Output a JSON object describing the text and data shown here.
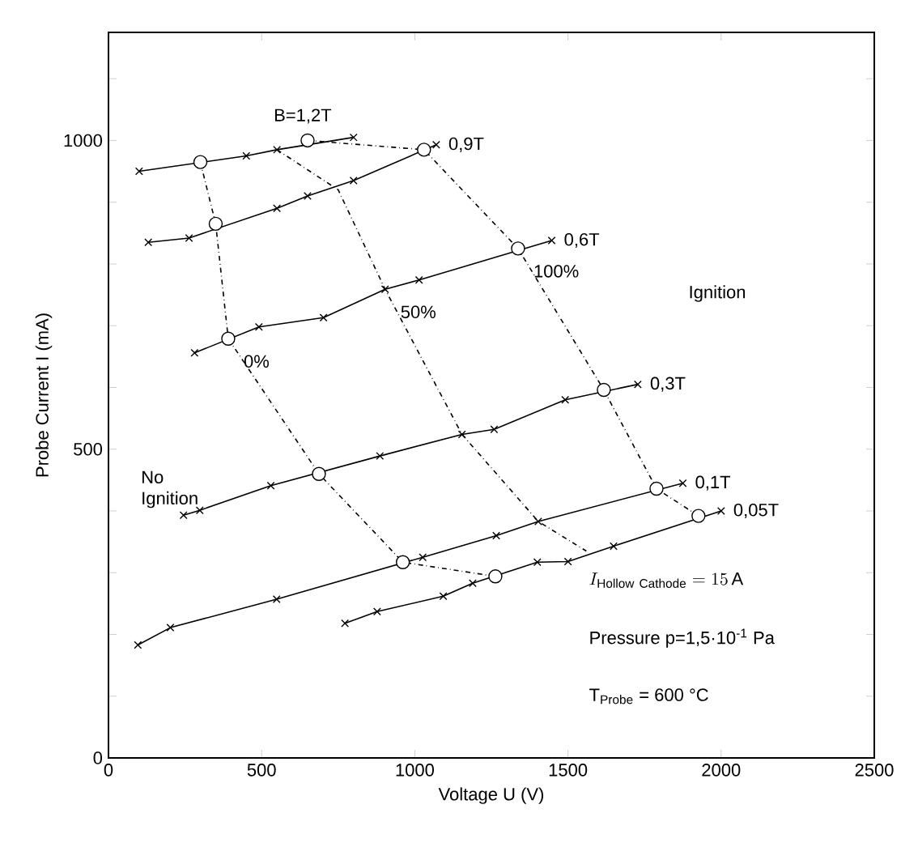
{
  "chart_data": {
    "type": "line",
    "xlabel": "Voltage  U (V)",
    "ylabel": "Probe Current  I (mA)",
    "xlim": [
      0,
      2500
    ],
    "ylim": [
      0,
      1175
    ],
    "xticks": [
      0,
      500,
      1000,
      1500,
      2000,
      2500
    ],
    "yticks": [
      0,
      {
        "value": 100,
        "label": null
      },
      {
        "value": 200,
        "label": null
      },
      {
        "value": 300,
        "label": null
      },
      {
        "value": 400,
        "label": null
      },
      500,
      {
        "value": 600,
        "label": null
      },
      {
        "value": 700,
        "label": null
      },
      {
        "value": 800,
        "label": null
      },
      {
        "value": 900,
        "label": null
      },
      1000,
      {
        "value": 1100,
        "label": null
      }
    ],
    "grid": false,
    "series": [
      {
        "name": "B=1,2T",
        "color": "#000000",
        "marker": "cross",
        "line_style": "solid",
        "x": [
          100,
          450,
          550,
          800
        ],
        "values": [
          950,
          975,
          985,
          1005
        ]
      },
      {
        "name": "0,9T",
        "color": "#000000",
        "marker": "cross",
        "line_style": "solid",
        "x": [
          130,
          263,
          550,
          650,
          800,
          1070
        ],
        "values": [
          835,
          842,
          890,
          910,
          935,
          993
        ]
      },
      {
        "name": "0,6T",
        "color": "#000000",
        "marker": "cross",
        "line_style": "solid",
        "x": [
          281,
          491,
          702,
          903,
          1014,
          1447
        ],
        "values": [
          656,
          698,
          713,
          759,
          774,
          838
        ]
      },
      {
        "name": "0,3T",
        "color": "#000000",
        "marker": "cross",
        "line_style": "solid",
        "x": [
          245,
          298,
          530,
          886,
          1154,
          1259,
          1491,
          1728
        ],
        "values": [
          393,
          401,
          441,
          489,
          524,
          532,
          580,
          605
        ]
      },
      {
        "name": "0,1T",
        "color": "#000000",
        "marker": "cross",
        "line_style": "solid",
        "x": [
          96,
          202,
          549,
          1026,
          1266,
          1403,
          1875
        ],
        "values": [
          183,
          211,
          257,
          325,
          360,
          383,
          445
        ]
      },
      {
        "name": "0,05T",
        "color": "#000000",
        "marker": "cross",
        "line_style": "solid",
        "x": [
          772,
          877,
          1093,
          1189,
          1400,
          1500,
          1649,
          2000
        ],
        "values": [
          218,
          237,
          262,
          283,
          317,
          318,
          343,
          400
        ]
      },
      {
        "name": "0%",
        "color": "#000000",
        "marker": "circle",
        "line_style": "dashed",
        "x": [
          300,
          350,
          391,
          687,
          961,
          1263
        ],
        "values": [
          965,
          865,
          679,
          460,
          317,
          294
        ]
      },
      {
        "name": "50%",
        "color": "#000000",
        "marker": "none",
        "line_style": "dashed",
        "x": [
          550,
          750,
          903,
          1154,
          1403,
          1560
        ],
        "values": [
          985,
          920,
          759,
          524,
          383,
          335
        ]
      },
      {
        "name": "100%",
        "color": "#000000",
        "marker": "circle",
        "line_style": "dashed",
        "x": [
          650,
          1030,
          1337,
          1617,
          1789,
          1926
        ],
        "values": [
          1000,
          985,
          825,
          596,
          436,
          392
        ]
      }
    ],
    "annotations": [
      "No Ignition",
      "Ignition",
      "I_{\\mathrm{Hollow\\ Cathode}}=15\\,\\mathrm{A}",
      "Pressure  p=1,5·10$^{-1}$ Pa",
      "T$_{Probe}$ = 600 °C"
    ]
  }
}
